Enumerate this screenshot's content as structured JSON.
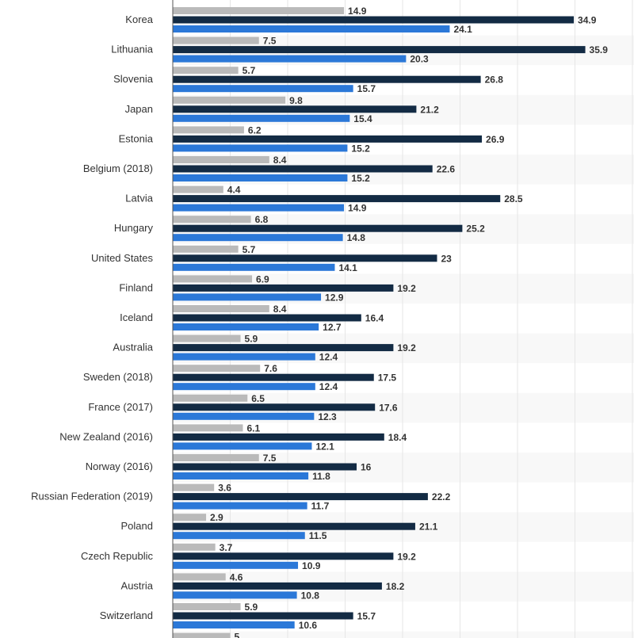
{
  "chart_data": {
    "type": "bar",
    "orientation": "horizontal",
    "categories": [
      "Korea",
      "Lithuania",
      "Slovenia",
      "Japan",
      "Estonia",
      "Belgium (2018)",
      "Latvia",
      "Hungary",
      "United States",
      "Finland",
      "Iceland",
      "Australia",
      "Sweden (2018)",
      "France (2017)",
      "New Zealand (2016)",
      "Norway (2016)",
      "Russian Federation (2019)",
      "Poland",
      "Czech Republic",
      "Austria",
      "Switzerland"
    ],
    "series": [
      {
        "color": "#bababa",
        "values": [
          14.9,
          7.5,
          5.7,
          9.8,
          6.2,
          8.4,
          4.4,
          6.8,
          5.7,
          6.9,
          8.4,
          5.9,
          7.6,
          6.5,
          6.1,
          7.5,
          3.6,
          2.9,
          3.7,
          4.6,
          5.9
        ]
      },
      {
        "color": "#132b44",
        "values": [
          34.9,
          35.9,
          26.8,
          21.2,
          26.9,
          22.6,
          28.5,
          25.2,
          23,
          19.2,
          16.4,
          19.2,
          17.5,
          17.6,
          18.4,
          16,
          22.2,
          21.1,
          19.2,
          18.2,
          15.7
        ]
      },
      {
        "color": "#2b78d8",
        "values": [
          24.1,
          20.3,
          15.7,
          15.4,
          15.2,
          15.2,
          14.9,
          14.8,
          14.1,
          12.9,
          12.7,
          12.4,
          12.4,
          12.3,
          12.1,
          11.8,
          11.7,
          11.5,
          10.9,
          10.8,
          10.6
        ]
      }
    ],
    "partial_next_row_value": "5",
    "xlim": [
      0,
      40
    ],
    "grid": true,
    "colors": {
      "grid": "#e6e6e6",
      "band": "#f8f8f8",
      "axis": "#555555"
    }
  }
}
